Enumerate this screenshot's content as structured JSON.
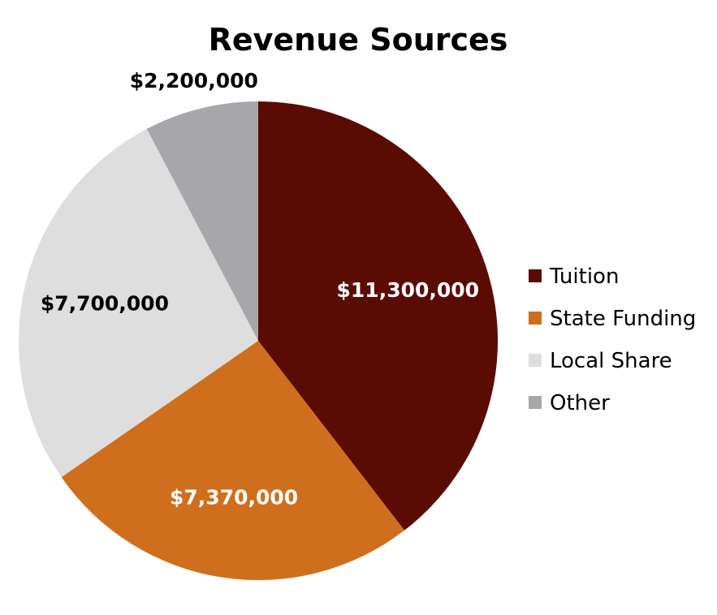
{
  "chart_data": {
    "type": "pie",
    "title": "Revenue Sources",
    "categories": [
      "Tuition",
      "State Funding",
      "Local Share",
      "Other"
    ],
    "values": [
      11300000,
      7370000,
      7700000,
      2200000
    ],
    "value_labels": [
      "$11,300,000",
      "$7,370,000",
      "$7,700,000",
      "$2,200,000"
    ],
    "colors": [
      "#5a0c02",
      "#cf6f1d",
      "#dedede",
      "#a7a7ab"
    ],
    "label_colors": [
      "#ffffff",
      "#ffffff",
      "#000000",
      "#000000"
    ],
    "start_angle": "12 o'clock",
    "direction": "clockwise",
    "legend": {
      "position": "right",
      "entries": [
        "Tuition",
        "State Funding",
        "Local Share",
        "Other"
      ]
    }
  }
}
